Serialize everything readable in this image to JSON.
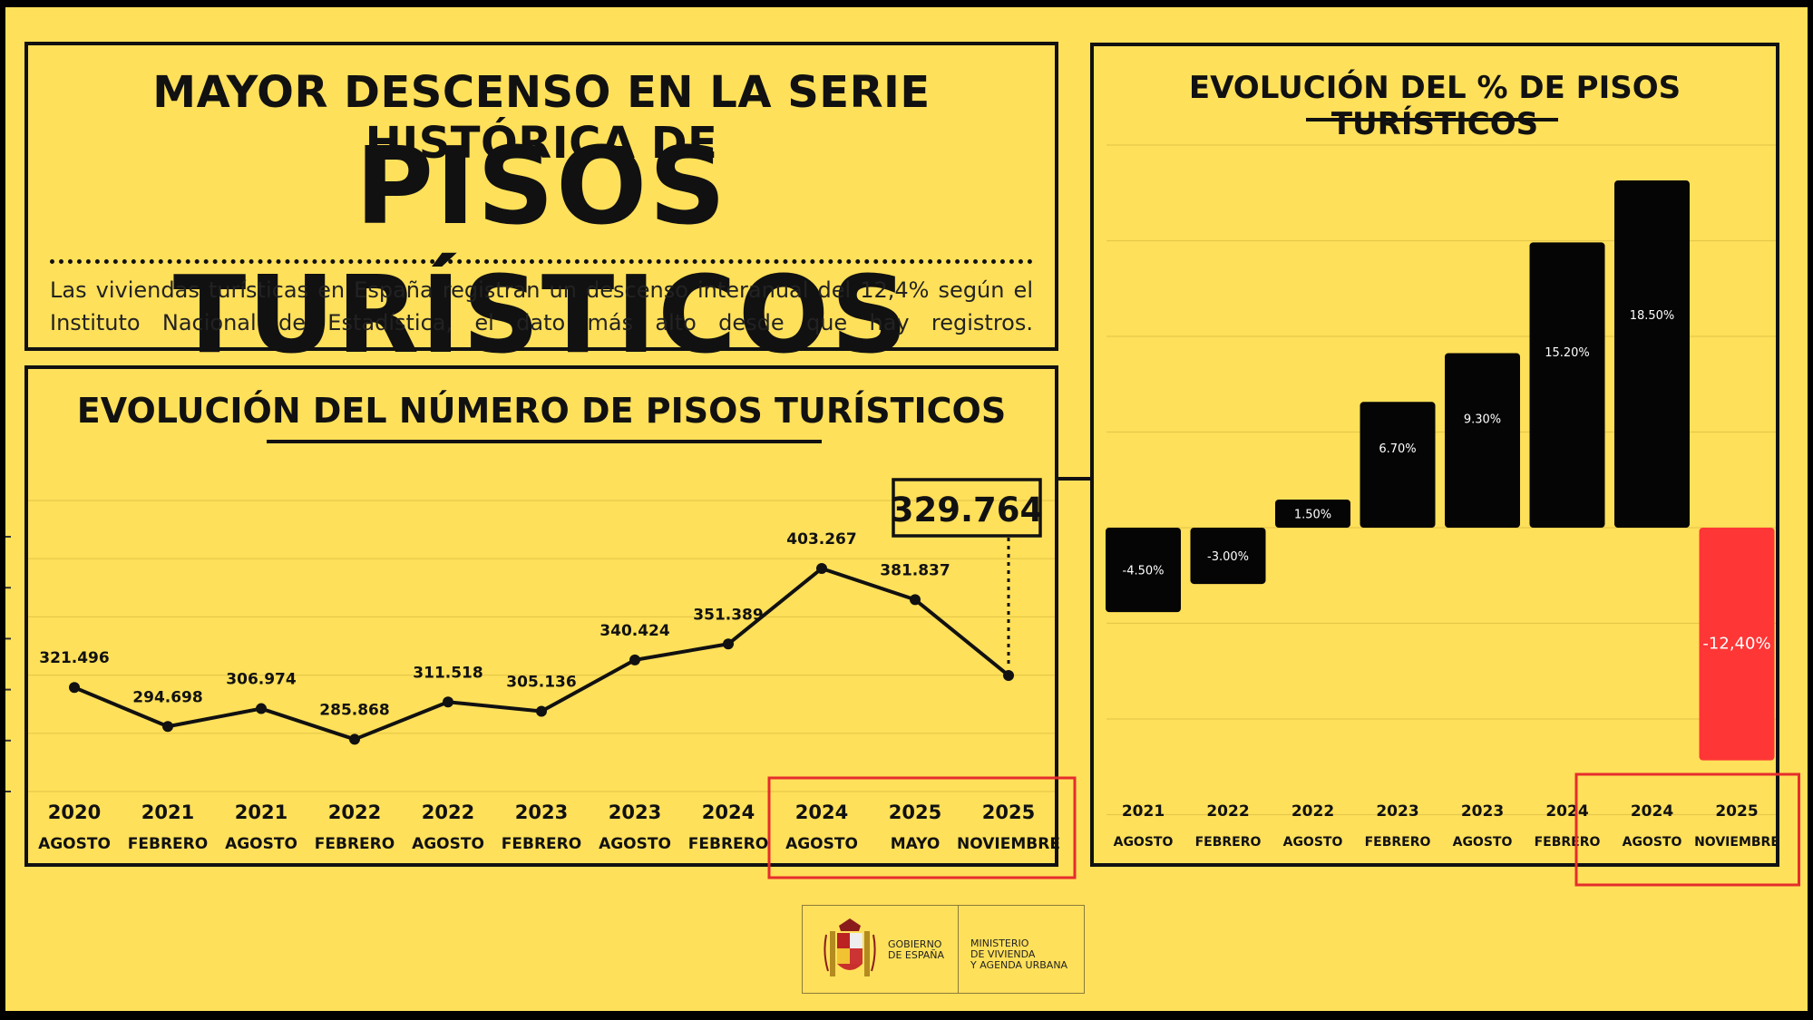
{
  "header": {
    "line1": "MAYOR DESCENSO EN LA SERIE HISTÓRICA DE",
    "line2": "PISOS TURÍSTICOS",
    "description": "Las viviendas turísticas en España registran un descenso interanual del 12,4% según el Instituto Nacional de Estadística, el dato más alto desde que hay registros."
  },
  "footer": {
    "gov_line1": "GOBIERNO",
    "gov_line2": "DE ESPAÑA",
    "ministry_line1": "MINISTERIO",
    "ministry_line2": "DE VIVIENDA",
    "ministry_line3": "Y AGENDA URBANA"
  },
  "colors": {
    "background": "#ffe05a",
    "ink": "#111111",
    "highlight": "#ff3333"
  },
  "chart_data": [
    {
      "type": "line",
      "title": "EVOLUCIÓN DEL NÚMERO DE PISOS TURÍSTICOS",
      "categories": [
        {
          "year": "2020",
          "month": "AGOSTO"
        },
        {
          "year": "2021",
          "month": "FEBRERO"
        },
        {
          "year": "2021",
          "month": "AGOSTO"
        },
        {
          "year": "2022",
          "month": "FEBRERO"
        },
        {
          "year": "2022",
          "month": "AGOSTO"
        },
        {
          "year": "2023",
          "month": "FEBRERO"
        },
        {
          "year": "2023",
          "month": "AGOSTO"
        },
        {
          "year": "2024",
          "month": "FEBRERO"
        },
        {
          "year": "2024",
          "month": "AGOSTO"
        },
        {
          "year": "2025",
          "month": "MAYO"
        },
        {
          "year": "2025",
          "month": "NOVIEMBRE"
        }
      ],
      "values": [
        321496,
        294698,
        306974,
        285868,
        311518,
        305136,
        340424,
        351389,
        403267,
        381837,
        329764
      ],
      "labels": [
        "321.496",
        "294.698",
        "306.974",
        "285.868",
        "311.518",
        "305.136",
        "340.424",
        "351.389",
        "403.267",
        "381.837"
      ],
      "highlight_label": "329.764",
      "ylim": [
        250000,
        450000
      ],
      "grid": true,
      "highlighted_categories": [
        8,
        9,
        10
      ]
    },
    {
      "type": "bar",
      "title": "EVOLUCIÓN DEL % DE PISOS TURÍSTICOS",
      "categories": [
        {
          "year": "2021",
          "month": "AGOSTO"
        },
        {
          "year": "2022",
          "month": "FEBRERO"
        },
        {
          "year": "2022",
          "month": "AGOSTO"
        },
        {
          "year": "2023",
          "month": "FEBRERO"
        },
        {
          "year": "2023",
          "month": "AGOSTO"
        },
        {
          "year": "2024",
          "month": "FEBRERO"
        },
        {
          "year": "2024",
          "month": "AGOSTO"
        },
        {
          "year": "2025",
          "month": "NOVIEMBRE"
        }
      ],
      "values": [
        -4.5,
        -3.0,
        1.5,
        6.7,
        9.3,
        15.2,
        18.5,
        -12.4
      ],
      "labels": [
        "-4.50%",
        "-3.00%",
        "1.50%",
        "6.70%",
        "9.30%",
        "15.20%",
        "18.50%",
        "-12,40%"
      ],
      "ylim": [
        -15,
        20
      ],
      "grid": true,
      "highlighted_categories": [
        6,
        7
      ]
    }
  ]
}
